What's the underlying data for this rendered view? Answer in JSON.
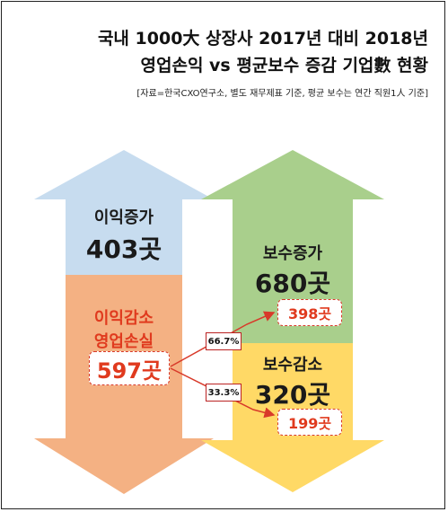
{
  "title": {
    "line1": "국내 1000大 상장사 2017년 대비 2018년",
    "line2": "영업손익 vs 평균보수 증감 기업數 현황"
  },
  "source": "[자료=한국CXO연구소, 별도 재무제표 기준, 평균 보수는 연간 직원1人 기준]",
  "left": {
    "profit_up": {
      "label": "이익증가",
      "count": "403곳"
    },
    "profit_down": {
      "label1": "이익감소",
      "label2": "영업손실",
      "count": "597곳"
    }
  },
  "right": {
    "pay_up": {
      "label": "보수증가",
      "count": "680곳",
      "sub": "398곳"
    },
    "pay_down": {
      "label": "보수감소",
      "count": "320곳",
      "sub": "199곳"
    }
  },
  "links": {
    "to_up": "66.7%",
    "to_down": "33.3%"
  },
  "colors": {
    "blue": "#c7dcef",
    "orange": "#f4b183",
    "green": "#a9cf8c",
    "yellow": "#ffd966",
    "red": "#e03a1e"
  }
}
